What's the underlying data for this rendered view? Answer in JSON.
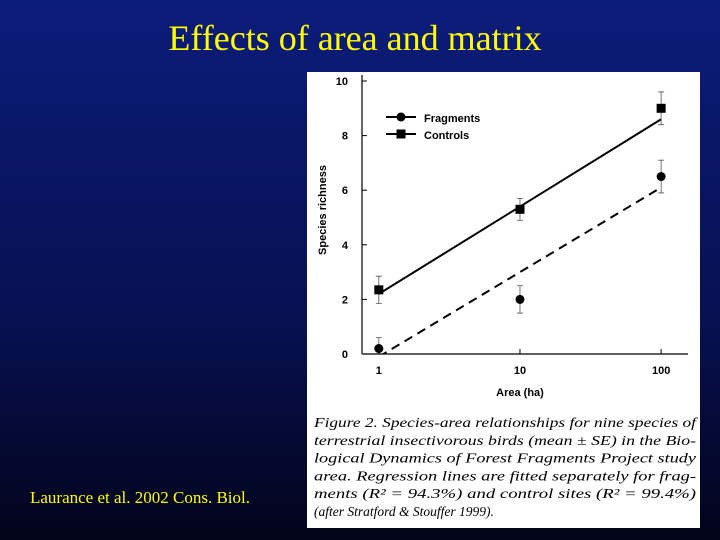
{
  "slide": {
    "title": "Effects of area and matrix",
    "citation": "Laurance et al. 2002 Cons. Biol."
  },
  "chart_data": {
    "type": "scatter",
    "x_label": "Area (ha)",
    "y_label": "Species richness",
    "x": [
      1,
      10,
      100
    ],
    "xscale": "log",
    "xlim": [
      0.76,
      155
    ],
    "xticks": [
      1,
      10,
      100
    ],
    "ylim": [
      0,
      10
    ],
    "yticks": [
      0,
      2,
      4,
      6,
      8,
      10
    ],
    "legend": "upper left",
    "series": [
      {
        "name": "Fragments",
        "color": "#000000",
        "marker": "circle",
        "line": "dashed",
        "values": [
          0.2,
          2.0,
          6.5
        ],
        "errors": [
          0.4,
          0.5,
          0.6
        ],
        "fit": {
          "x": [
            1,
            100
          ],
          "values": [
            -0.1,
            6.1
          ]
        }
      },
      {
        "name": "Controls",
        "color": "#000000",
        "marker": "square",
        "line": "solid",
        "values": [
          2.35,
          5.3,
          9.0
        ],
        "errors": [
          0.5,
          0.4,
          0.6
        ],
        "fit": {
          "x": [
            1,
            100
          ],
          "values": [
            2.2,
            8.6
          ]
        }
      }
    ],
    "caption": [
      "Figure 2.  Species-area relationships for nine species of",
      "terrestrial insectivorous birds (mean ± SE) in the Bio-",
      "logical Dynamics of Forest Fragments Project study",
      "area. Regression lines are fitted separately for frag-",
      "ments (R² = 94.3%) and control sites (R² = 99.4%)",
      "(after Stratford & Stouffer 1999)."
    ]
  }
}
